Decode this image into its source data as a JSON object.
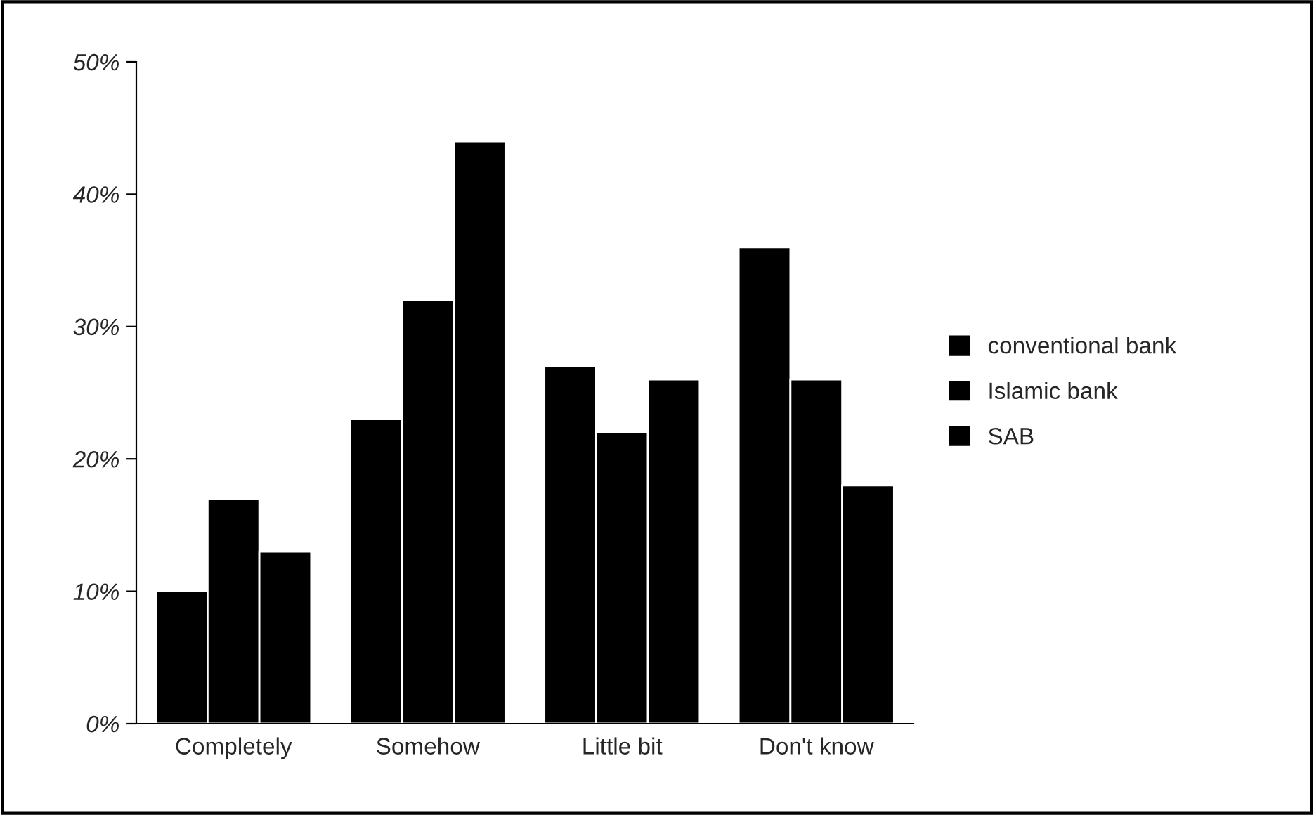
{
  "chart_data": {
    "type": "bar",
    "categories": [
      "Completely",
      "Somehow",
      "Little bit",
      "Don't know"
    ],
    "series": [
      {
        "name": "conventional bank",
        "color": "#000000",
        "values": [
          10,
          23,
          27,
          36
        ]
      },
      {
        "name": "Islamic bank",
        "color": "#000000",
        "values": [
          17,
          32,
          22,
          26
        ]
      },
      {
        "name": "SAB",
        "color": "#000000",
        "values": [
          13,
          44,
          26,
          18
        ]
      }
    ],
    "ylim": [
      0,
      50
    ],
    "yticks": [
      {
        "value": 0,
        "label": "0%"
      },
      {
        "value": 10,
        "label": "10%"
      },
      {
        "value": 20,
        "label": "20%"
      },
      {
        "value": 30,
        "label": "30%"
      },
      {
        "value": 40,
        "label": "40%"
      },
      {
        "value": 50,
        "label": "50%"
      }
    ],
    "grid": false,
    "legend": "right"
  }
}
